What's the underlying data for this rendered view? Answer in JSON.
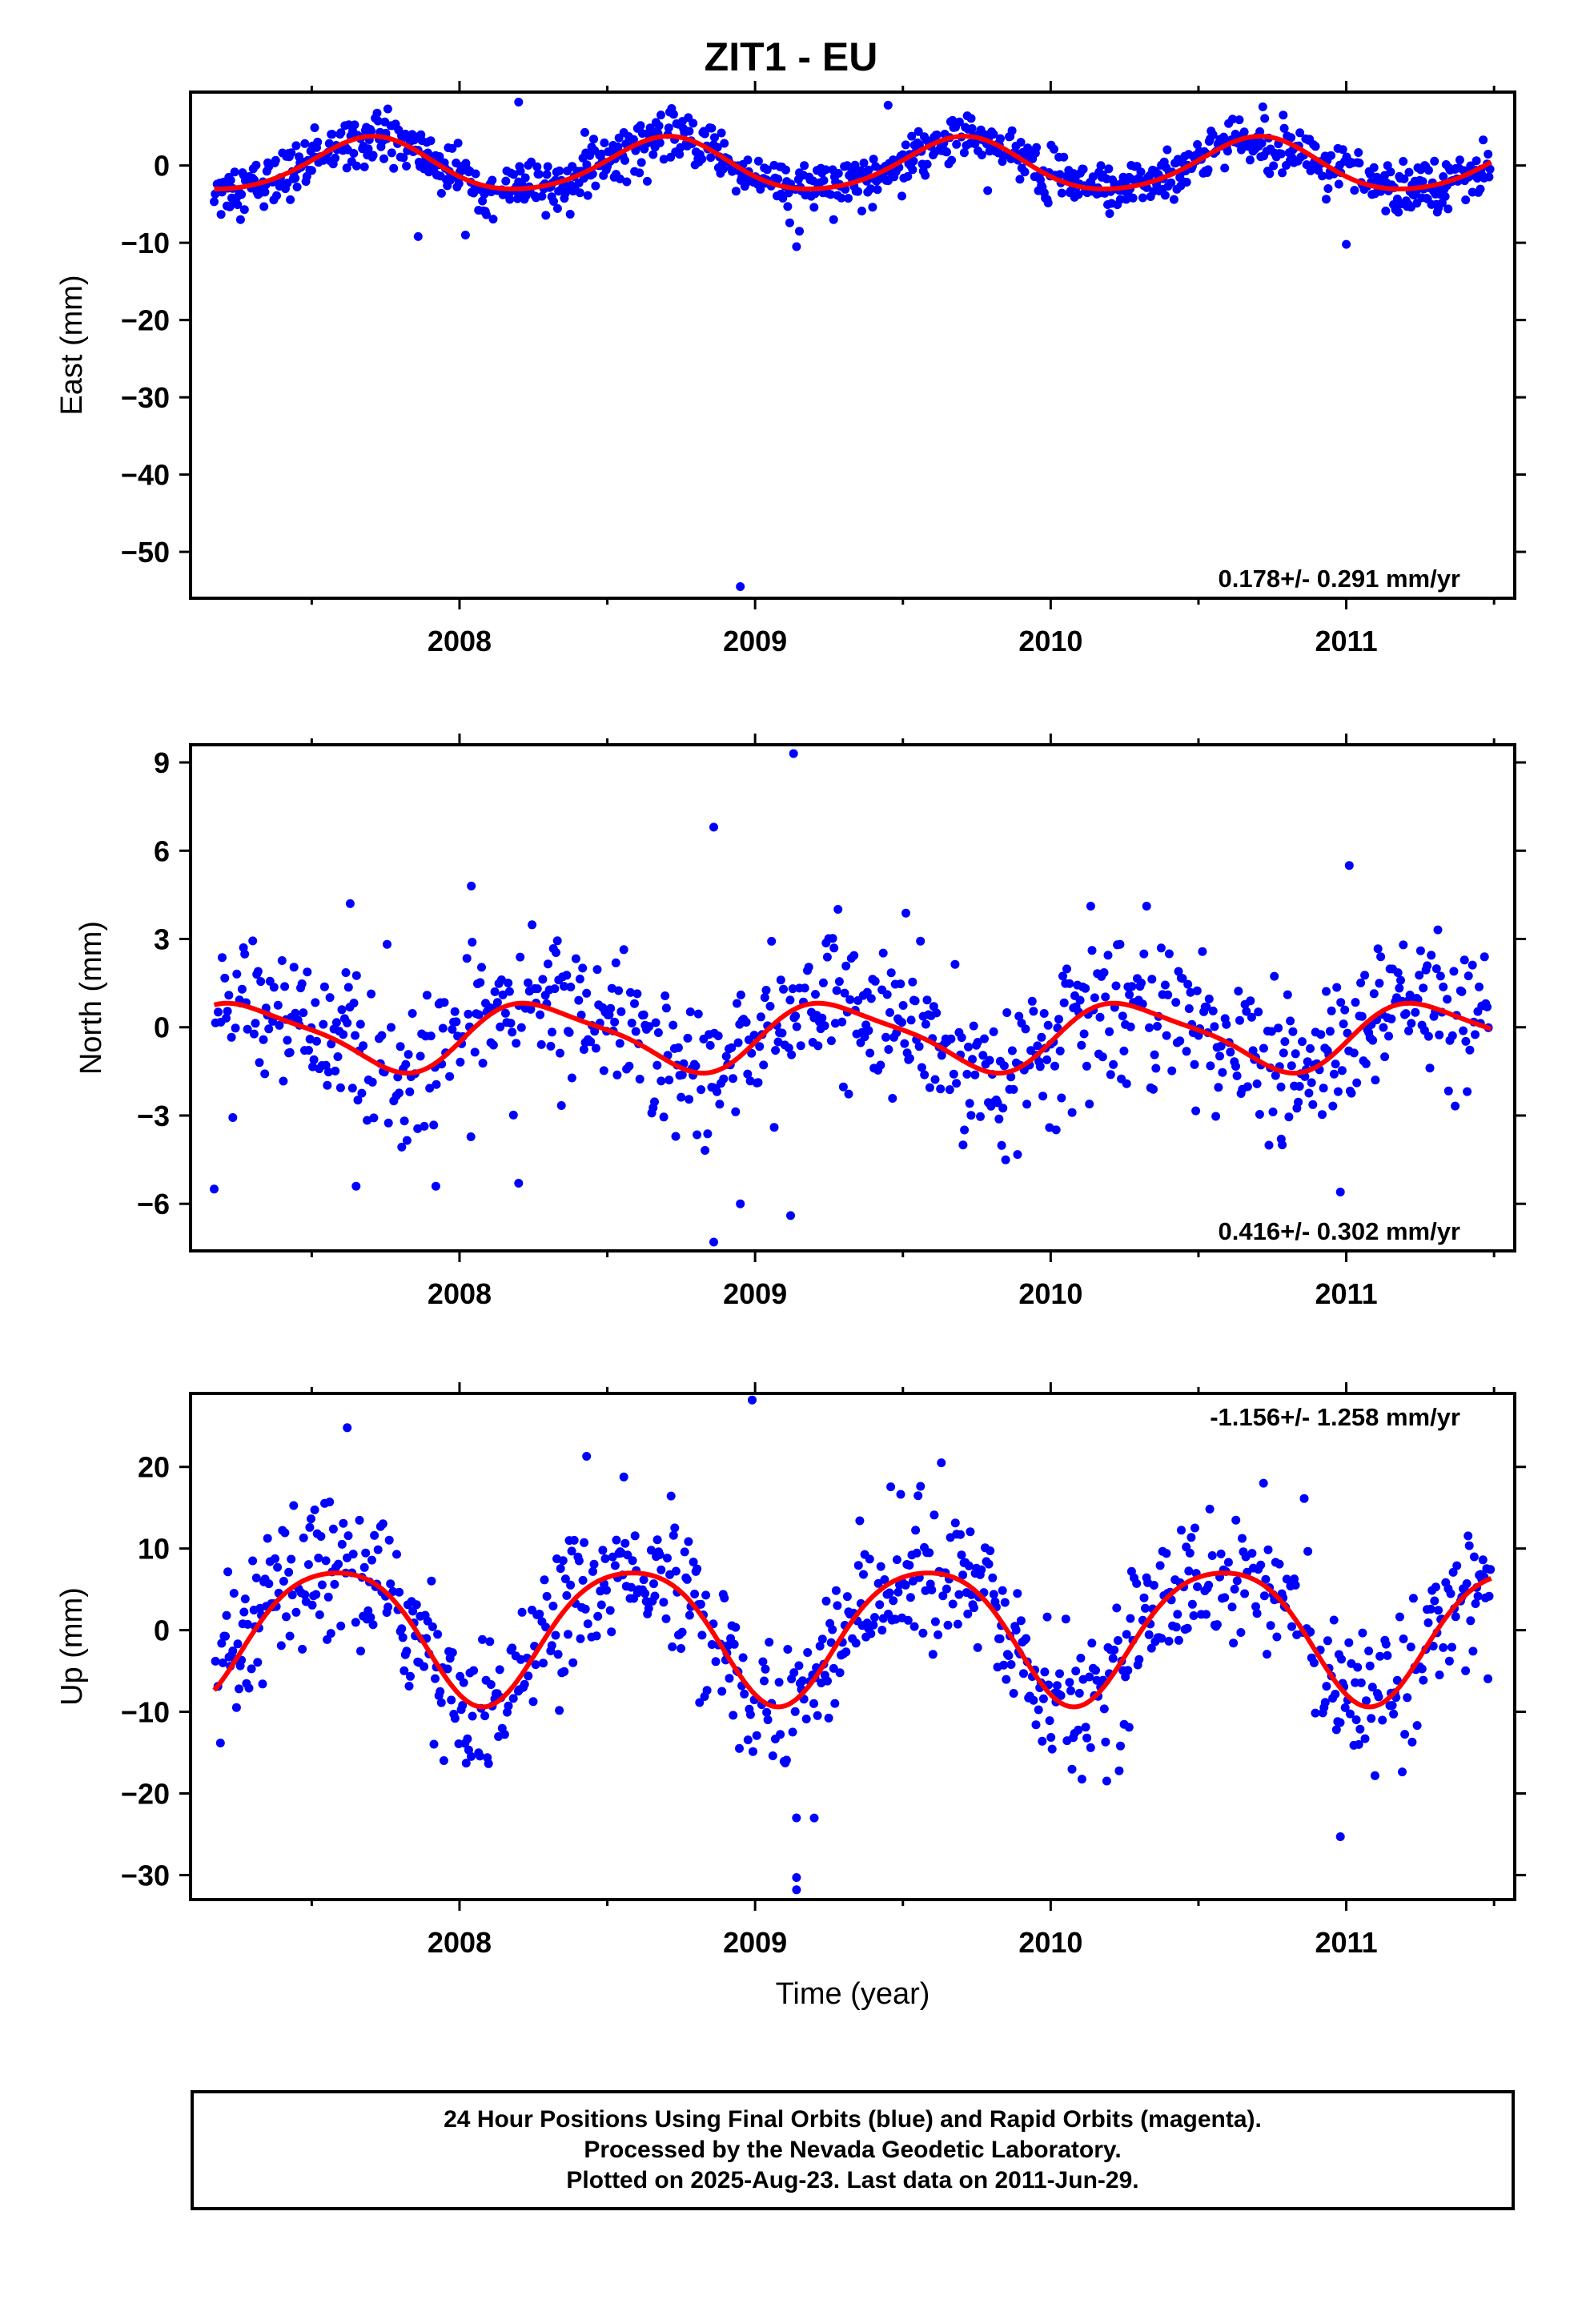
{
  "title": "ZIT1 - EU",
  "caption": [
    "24 Hour Positions Using Final Orbits (blue) and Rapid Orbits (magenta).",
    "Processed by the Nevada Geodetic Laboratory.",
    "Plotted on 2025-Aug-23. Last data on 2011-Jun-29."
  ],
  "colors": {
    "points": "#0000ff",
    "fit": "#ff0000",
    "axes": "#000000"
  },
  "chart_data": [
    {
      "type": "scatter",
      "ylabel": "East (mm)",
      "xlabel": "",
      "rate": "0.178+/- 0.291 mm/yr",
      "rate_position": "bottom-right",
      "xlim": [
        2007.09,
        2011.57
      ],
      "ylim": [
        -56,
        9.5
      ],
      "xticks": [
        2008,
        2009,
        2010,
        2011
      ],
      "xtick_labels": [
        "2008",
        "2009",
        "2010",
        "2011"
      ],
      "yticks": [
        0,
        -10,
        -20,
        -30,
        -40,
        -50
      ],
      "ytick_labels": [
        "0",
        "−10",
        "−20",
        "−30",
        "−40",
        "−50"
      ],
      "fit": {
        "offset": 0,
        "amp1": 3.4,
        "phase1": 0.45,
        "amp2": 0.4,
        "phase2": 0.1,
        "start": 2007.17,
        "end": 2011.49
      },
      "scatter": 1.6,
      "sample_step": 0.0033,
      "outliers": [
        [
          2008.2,
          8.2
        ],
        [
          2008.95,
          -54.5
        ],
        [
          2009.14,
          -10.5
        ],
        [
          2009.15,
          -8.5
        ],
        [
          2011.0,
          -10.2
        ],
        [
          2007.86,
          -9.2
        ],
        [
          2008.02,
          -9.0
        ],
        [
          2009.45,
          7.8
        ]
      ]
    },
    {
      "type": "scatter",
      "ylabel": "North (mm)",
      "xlabel": "",
      "rate": "0.416+/- 0.302 mm/yr",
      "rate_position": "bottom-right",
      "xlim": [
        2007.09,
        2011.57
      ],
      "ylim": [
        -7.6,
        9.6
      ],
      "xticks": [
        2008,
        2009,
        2010,
        2011
      ],
      "xtick_labels": [
        "2008",
        "2009",
        "2010",
        "2011"
      ],
      "yticks": [
        9,
        6,
        3,
        0,
        -3,
        -6
      ],
      "ytick_labels": [
        "9",
        "6",
        "3",
        "0",
        "−3",
        "−6"
      ],
      "fit": {
        "offset": -0.3,
        "amp1": 1.1,
        "phase1": 0.03,
        "amp2": 0.25,
        "phase2": 0.5,
        "start": 2007.17,
        "end": 2011.49
      },
      "scatter": 1.2,
      "sample_step": 0.0045,
      "outliers": [
        [
          2007.17,
          -5.5
        ],
        [
          2007.63,
          4.2
        ],
        [
          2007.65,
          -5.4
        ],
        [
          2007.92,
          -5.4
        ],
        [
          2008.04,
          4.8
        ],
        [
          2008.2,
          -5.3
        ],
        [
          2008.86,
          6.8
        ],
        [
          2008.86,
          -7.3
        ],
        [
          2008.95,
          -6.0
        ],
        [
          2009.12,
          -6.4
        ],
        [
          2009.13,
          9.3
        ],
        [
          2010.98,
          -5.6
        ],
        [
          2010.78,
          -3.8
        ],
        [
          2011.01,
          5.5
        ]
      ]
    },
    {
      "type": "scatter",
      "ylabel": "Up (mm)",
      "xlabel": "Time (year)",
      "rate": "-1.156+/- 1.258 mm/yr",
      "rate_position": "top-right",
      "xlim": [
        2007.09,
        2011.57
      ],
      "ylim": [
        -33,
        29
      ],
      "xticks": [
        2008,
        2009,
        2010,
        2011
      ],
      "xtick_labels": [
        "2008",
        "2009",
        "2010",
        "2011"
      ],
      "yticks": [
        20,
        10,
        0,
        -10,
        -20,
        -30
      ],
      "ytick_labels": [
        "20",
        "10",
        "0",
        "−10",
        "−20",
        "−30"
      ],
      "fit": {
        "offset": 0,
        "amp1": 8.2,
        "phase1": 0.33,
        "amp2": 1.2,
        "phase2": 0.2,
        "start": 2007.17,
        "end": 2011.49
      },
      "scatter": 4.3,
      "sample_step": 0.0042,
      "outliers": [
        [
          2008.99,
          28.2
        ],
        [
          2009.14,
          -30.3
        ],
        [
          2009.14,
          -31.8
        ],
        [
          2007.62,
          24.8
        ],
        [
          2009.2,
          -23.0
        ],
        [
          2010.98,
          -25.3
        ],
        [
          2008.43,
          21.3
        ],
        [
          2010.72,
          18.0
        ],
        [
          2009.63,
          20.5
        ]
      ]
    }
  ]
}
